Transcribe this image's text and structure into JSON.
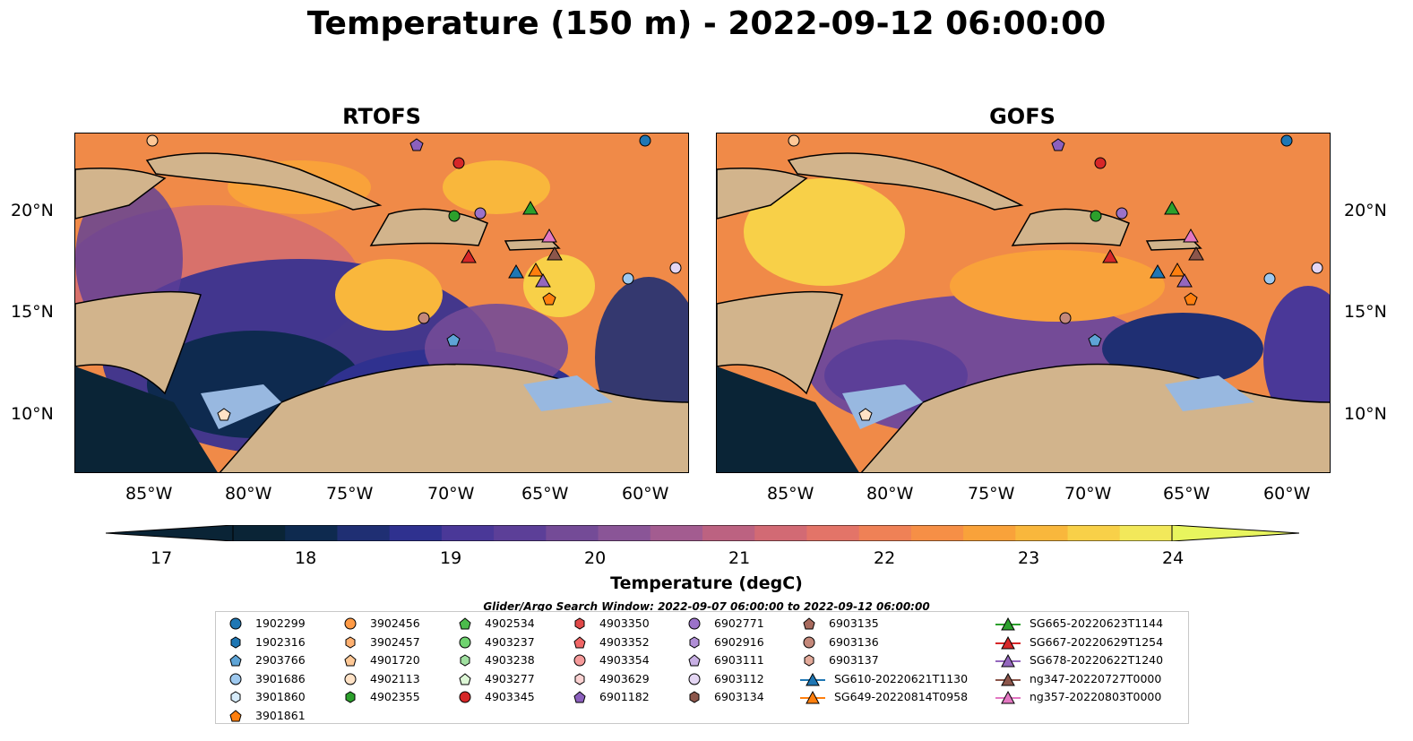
{
  "title": "Temperature (150 m) - 2022-09-12 06:00:00",
  "panels": [
    {
      "name": "RTOFS"
    },
    {
      "name": "GOFS"
    }
  ],
  "lon_ticks": [
    "85°W",
    "80°W",
    "75°W",
    "70°W",
    "65°W",
    "60°W"
  ],
  "lat_ticks": [
    "20°N",
    "15°N",
    "10°N"
  ],
  "colorbar": {
    "title": "Temperature (degC)",
    "ticks": [
      "17",
      "18",
      "19",
      "20",
      "21",
      "22",
      "23",
      "24"
    ],
    "colors": [
      "#0a2436",
      "#0e2a4f",
      "#1f2f73",
      "#2f318f",
      "#4a3898",
      "#5c3f98",
      "#744b97",
      "#8a5597",
      "#a35c90",
      "#bc6281",
      "#d26a74",
      "#e37468",
      "#ef8156",
      "#f68f46",
      "#f9a23a",
      "#f9b73c",
      "#f8d048",
      "#f2e85a"
    ],
    "min_color": "#0a2436",
    "max_color": "#e8f55e"
  },
  "legend": {
    "title": "Glider/Argo Search Window: 2022-09-07 06:00:00 to 2022-09-12 06:00:00",
    "items": [
      {
        "label": "1902299",
        "shape": "circle",
        "color": "#1f77b4"
      },
      {
        "label": "1902316",
        "shape": "hexagon",
        "color": "#1f77b4"
      },
      {
        "label": "2903766",
        "shape": "pentagon",
        "color": "#5ea4d6"
      },
      {
        "label": "3901686",
        "shape": "circle",
        "color": "#9ec9ef"
      },
      {
        "label": "3901860",
        "shape": "hexagon",
        "color": "#d6ebfa"
      },
      {
        "label": "3901861",
        "shape": "pentagon",
        "color": "#ff7f0e"
      },
      {
        "label": "3902456",
        "shape": "circle",
        "color": "#ff9a45"
      },
      {
        "label": "3902457",
        "shape": "hexagon",
        "color": "#ffb070"
      },
      {
        "label": "4901720",
        "shape": "pentagon",
        "color": "#ffc896"
      },
      {
        "label": "4902113",
        "shape": "circle",
        "color": "#ffe2c6"
      },
      {
        "label": "4902355",
        "shape": "hexagon",
        "color": "#2ca02c"
      },
      {
        "label": "4902534",
        "shape": "pentagon",
        "color": "#4cbb4c"
      },
      {
        "label": "4903237",
        "shape": "circle",
        "color": "#6fd36f"
      },
      {
        "label": "4903238",
        "shape": "hexagon",
        "color": "#a0e0a0"
      },
      {
        "label": "4903277",
        "shape": "pentagon",
        "color": "#ddf7d6"
      },
      {
        "label": "4903345",
        "shape": "circle",
        "color": "#d62728"
      },
      {
        "label": "4903350",
        "shape": "hexagon",
        "color": "#e04848"
      },
      {
        "label": "4903352",
        "shape": "pentagon",
        "color": "#f06666"
      },
      {
        "label": "4903354",
        "shape": "circle",
        "color": "#f59a9a"
      },
      {
        "label": "4903629",
        "shape": "hexagon",
        "color": "#fbd2d2"
      },
      {
        "label": "6901182",
        "shape": "pentagon",
        "color": "#8c60bd"
      },
      {
        "label": "6902771",
        "shape": "circle",
        "color": "#9b72c9"
      },
      {
        "label": "6902916",
        "shape": "hexagon",
        "color": "#b08ed6"
      },
      {
        "label": "6903111",
        "shape": "pentagon",
        "color": "#c8b0e4"
      },
      {
        "label": "6903112",
        "shape": "circle",
        "color": "#e4d6f3"
      },
      {
        "label": "6903134",
        "shape": "hexagon",
        "color": "#8c564b"
      },
      {
        "label": "6903135",
        "shape": "pentagon",
        "color": "#a86b5e"
      },
      {
        "label": "6903136",
        "shape": "circle",
        "color": "#c4887a"
      },
      {
        "label": "6903137",
        "shape": "hexagon",
        "color": "#e3aa9a"
      },
      {
        "label": "SG610-20220621T1130",
        "shape": "triangle-line",
        "color": "#1f77b4"
      },
      {
        "label": "SG649-20220814T0958",
        "shape": "triangle-line",
        "color": "#ff7f0e"
      },
      {
        "label": "SG665-20220623T1144",
        "shape": "triangle-line",
        "color": "#2ca02c"
      },
      {
        "label": "SG667-20220629T1254",
        "shape": "triangle-line",
        "color": "#d62728"
      },
      {
        "label": "SG678-20220622T1240",
        "shape": "triangle-line",
        "color": "#9467bd"
      },
      {
        "label": "ng347-20220727T0000",
        "shape": "triangle-line",
        "color": "#8c564b"
      },
      {
        "label": "ng357-20220803T0000",
        "shape": "triangle-line",
        "color": "#e377c2"
      }
    ]
  }
}
